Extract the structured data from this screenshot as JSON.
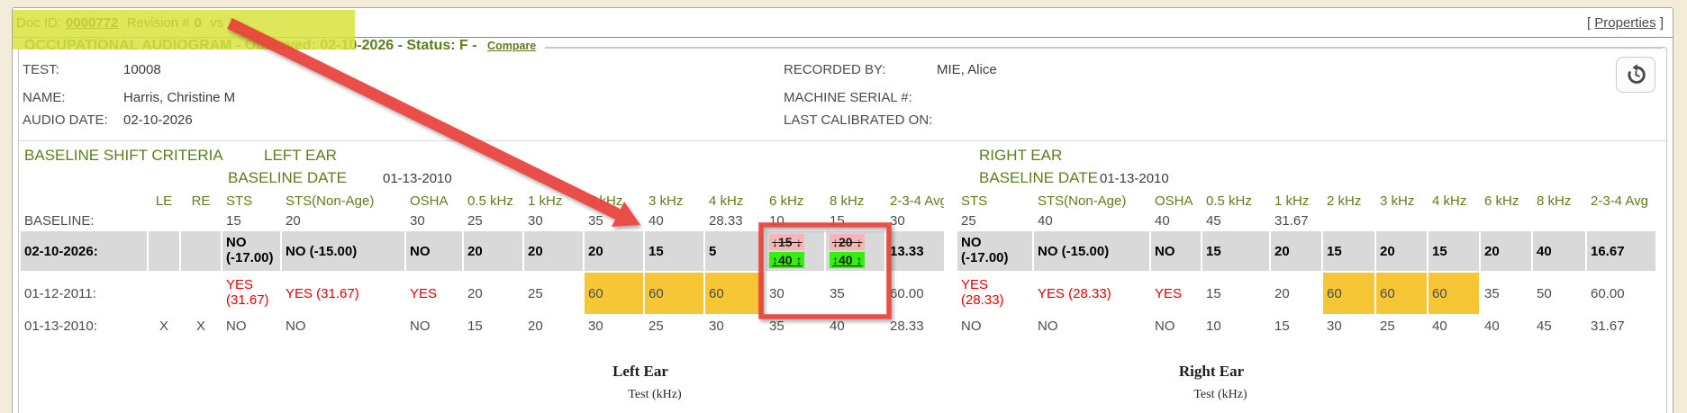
{
  "doc_bar": {
    "doc_id_label": "Doc ID:",
    "doc_id": "0000772",
    "revision_label": "Revision #",
    "rev_from": "0",
    "vs": "vs",
    "rev_to": "1",
    "properties_open": "[",
    "properties": "Properties",
    "properties_close": "]"
  },
  "header": {
    "title": "OCCUPATIONAL AUDIOGRAM - Observed: 02-10-2026 - Status: F -",
    "compare": "Compare"
  },
  "info": {
    "test_label": "TEST:",
    "test_value": "10008",
    "name_label": "NAME:",
    "name_value": "Harris, Christine M",
    "audio_date_label": "AUDIO DATE:",
    "audio_date_value": "02-10-2026",
    "recorded_by_label": "RECORDED BY:",
    "recorded_by_value": "MIE, Alice",
    "machine_serial_label": "MACHINE SERIAL #:",
    "machine_serial_value": "",
    "last_calibrated_label": "LAST CALIBRATED ON:",
    "last_calibrated_value": ""
  },
  "criteria": {
    "title": "BASELINE SHIFT CRITERIA",
    "left_ear": "LEFT EAR",
    "right_ear": "RIGHT EAR",
    "baseline_date_label": "BASELINE DATE",
    "left_baseline_date": "01-13-2010",
    "right_baseline_date": "01-13-2010"
  },
  "table": {
    "header_cells": [
      "",
      "LE",
      "RE",
      "STS",
      "STS(Non-Age)",
      "OSHA",
      "0.5 kHz",
      "1 kHz",
      "2 kHz",
      "3 kHz",
      "4 kHz",
      "6 kHz",
      "8 kHz",
      "2-3-4 Avg",
      "",
      "STS",
      "STS(Non-Age)",
      "OSHA",
      "0.5 kHz",
      "1 kHz",
      "2 kHz",
      "3 kHz",
      "4 kHz",
      "6 kHz",
      "8 kHz",
      "2-3-4 Avg"
    ],
    "rows": [
      {
        "label": "BASELINE:",
        "cls": "r-base",
        "cells": [
          "",
          "",
          "15",
          "20",
          "30",
          "25",
          "30",
          "35",
          "40",
          "28.33",
          "10",
          "15",
          "30",
          "",
          "25",
          "40",
          "40",
          "45",
          "31.67",
          "",
          "",
          "",
          "",
          "",
          ""
        ]
      },
      {
        "label": "02-10-2026:",
        "cls": "r-gray",
        "cells": [
          "",
          "",
          {
            "v": "NO",
            "v2": "(-17.00)"
          },
          "NO (-15.00)",
          "NO",
          "20",
          "20",
          "20",
          "15",
          "5",
          {
            "shift": {
              "old": "↓15 ↓",
              "new": "↕40 ↕"
            }
          },
          {
            "shift": {
              "old": "↓20 ↓",
              "new": "↕40 ↕"
            }
          },
          "13.33",
          "",
          {
            "v": "NO",
            "v2": "(-17.00)"
          },
          "NO (-15.00)",
          "NO",
          "15",
          "20",
          "15",
          "20",
          "15",
          "20",
          "40",
          "16.67"
        ]
      },
      {
        "label": "01-12-2011:",
        "cls": "r-2011",
        "cells": [
          "",
          "",
          {
            "v": "YES",
            "v2": "(31.67)",
            "cls": "red"
          },
          {
            "v": "YES (31.67)",
            "cls": "red"
          },
          {
            "v": "YES",
            "cls": "red"
          },
          "20",
          "25",
          {
            "v": "60",
            "cls": "orange"
          },
          {
            "v": "60",
            "cls": "orange"
          },
          {
            "v": "60",
            "cls": "orange"
          },
          "30",
          "35",
          "60.00",
          "",
          {
            "v": "YES",
            "v2": "(28.33)",
            "cls": "red"
          },
          {
            "v": "YES (28.33)",
            "cls": "red"
          },
          {
            "v": "YES",
            "cls": "red"
          },
          "15",
          "20",
          {
            "v": "60",
            "cls": "orange"
          },
          {
            "v": "60",
            "cls": "orange"
          },
          {
            "v": "60",
            "cls": "orange"
          },
          "35",
          "50",
          "60.00"
        ]
      },
      {
        "label": "01-13-2010:",
        "cls": "r-2010",
        "cells": [
          "X",
          "X",
          "NO",
          "NO",
          "NO",
          "15",
          "20",
          "30",
          "25",
          "30",
          "35",
          "40",
          "28.33",
          "",
          "NO",
          "NO",
          "NO",
          "10",
          "15",
          "30",
          "25",
          "40",
          "40",
          "45",
          "31.67"
        ]
      }
    ]
  },
  "footers": {
    "left_title": "Left Ear",
    "left_axis": "Test (kHz)",
    "right_title": "Right Ear",
    "right_axis": "Test (kHz)"
  },
  "colors": {
    "green_text": "#5e7d1b",
    "row_gray": "#d9d9d9",
    "orange_highlight": "#f7c636",
    "shift_old_pink": "#f6b6b6",
    "shift_new_green": "#35f00f",
    "red_text": "#e00000",
    "annotation_red": "#e8433b",
    "annotation_highlight": "#d9e33c",
    "page_background": "#f2ecd9"
  }
}
